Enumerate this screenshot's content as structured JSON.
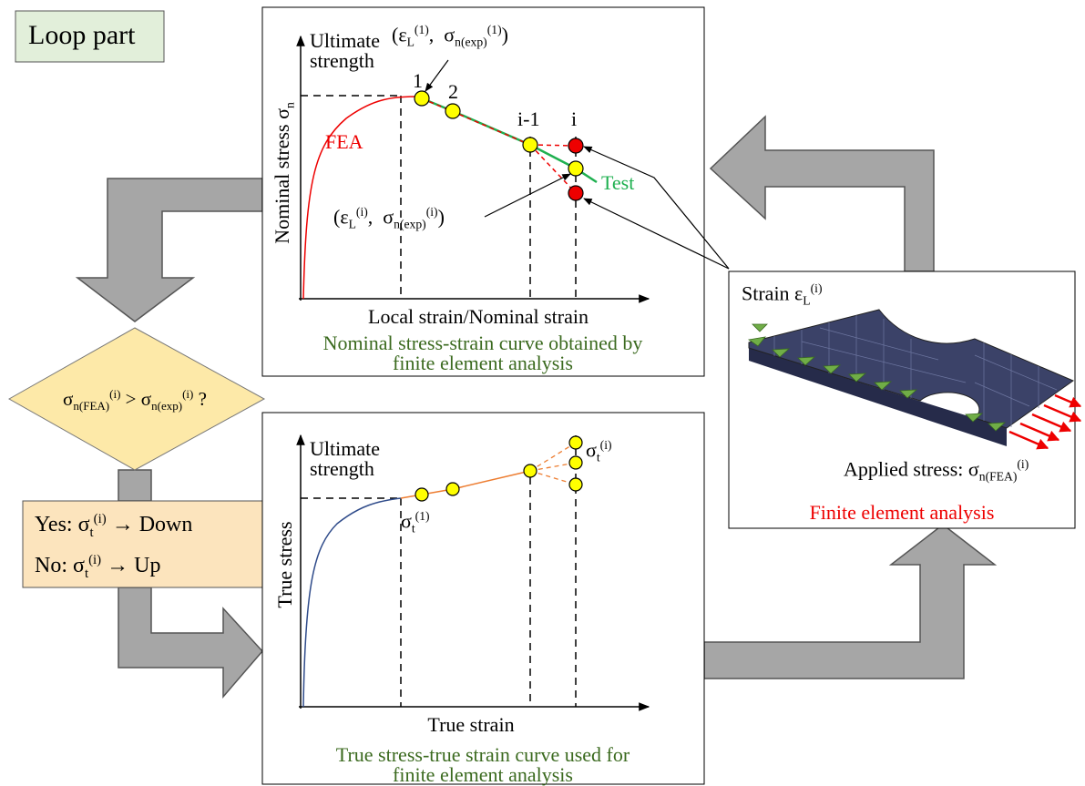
{
  "title": "Loop part",
  "top_panel": {
    "ultimate": [
      "Ultimate",
      "strength"
    ],
    "y_axis_label": [
      "Nominal stress σ",
      "n"
    ],
    "fea": "FEA",
    "test": "Test",
    "points": [
      "1",
      "2",
      "i-1",
      "i"
    ],
    "point_1_label": [
      "(ε",
      "L",
      "(1)",
      ",  σ",
      "n(exp)",
      "(1)",
      ")"
    ],
    "point_i_label": [
      "(ε",
      "L",
      "(i)",
      ",  σ",
      "n(exp)",
      "(i)",
      ")"
    ],
    "x_axis_label": "Local strain/Nominal strain",
    "caption": [
      "Nominal stress-strain curve obtained by",
      "finite element analysis"
    ]
  },
  "decision": [
    "σ",
    "n(FEA)",
    "(i)",
    " > σ",
    "n(exp)",
    "(i)",
    " ?"
  ],
  "update_rule": {
    "yes": [
      "Yes: σ",
      "t",
      "(i)",
      " → Down"
    ],
    "no": [
      "No: σ",
      "t",
      "(i)",
      " → Up"
    ]
  },
  "bottom_panel": {
    "ultimate": [
      "Ultimate",
      "strength"
    ],
    "y_axis_label": "True stress",
    "sigma_1": [
      "σ",
      "t",
      "(1)"
    ],
    "sigma_i": [
      "σ",
      "t",
      "(i)"
    ],
    "x_axis_label": "True strain",
    "caption": [
      "True stress-true strain curve used for",
      "finite element analysis"
    ]
  },
  "fea_panel": {
    "strain": [
      "Strain ε",
      "L",
      "(i)"
    ],
    "applied_stress": [
      "Applied stress: σ",
      "n(FEA)",
      "(i)"
    ],
    "caption": "Finite element analysis"
  }
}
